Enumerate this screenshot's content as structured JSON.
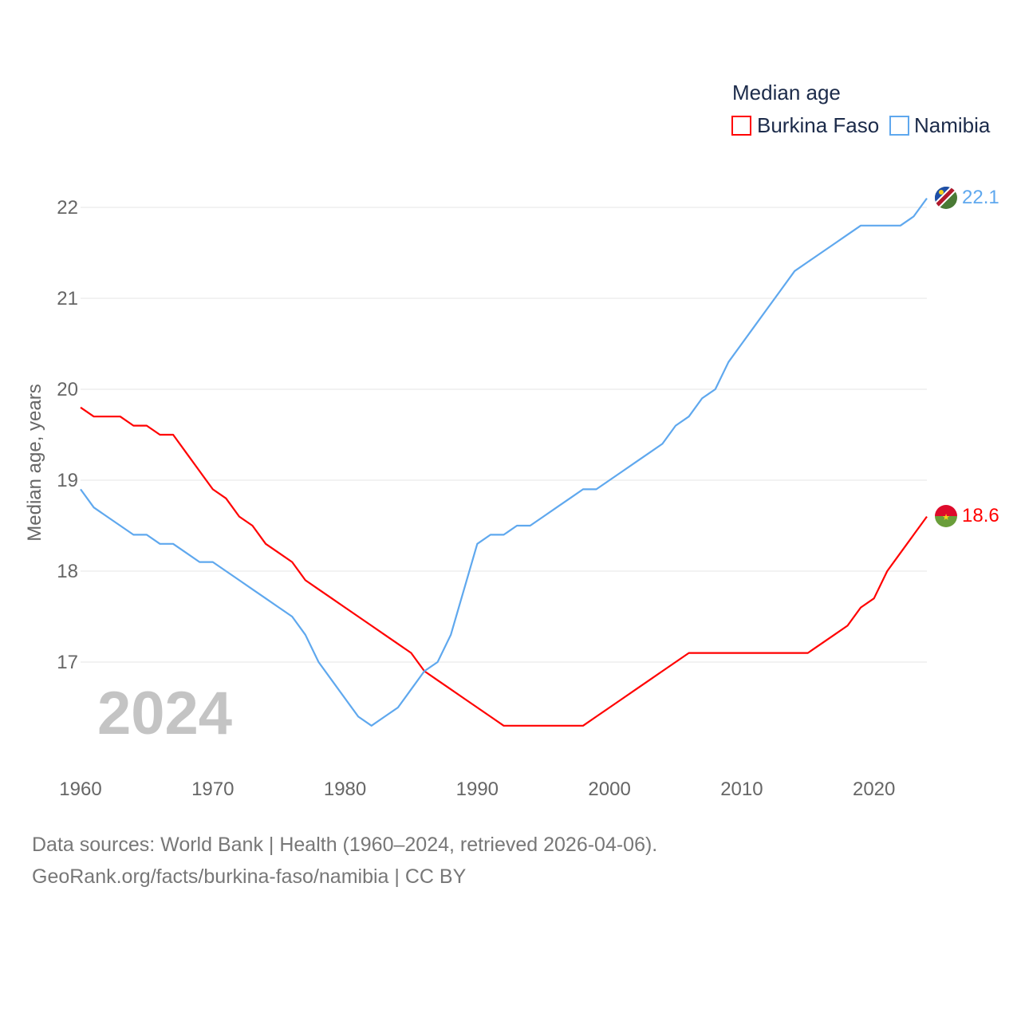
{
  "chart_data": {
    "type": "line",
    "title": "Median age",
    "ylabel": "Median age, years",
    "xlabel": "",
    "xlim": [
      1960,
      2024
    ],
    "ylim": [
      16.1,
      22.5
    ],
    "x_ticks": [
      "1960",
      "1970",
      "1980",
      "1990",
      "2000",
      "2010",
      "2020"
    ],
    "y_ticks": [
      "17",
      "18",
      "19",
      "20",
      "21",
      "22"
    ],
    "grid": true,
    "legend_position": "top-right",
    "year_watermark": "2024",
    "x": [
      1960,
      1961,
      1962,
      1963,
      1964,
      1965,
      1966,
      1967,
      1968,
      1969,
      1970,
      1971,
      1972,
      1973,
      1974,
      1975,
      1976,
      1977,
      1978,
      1979,
      1980,
      1981,
      1982,
      1983,
      1984,
      1985,
      1986,
      1987,
      1988,
      1989,
      1990,
      1991,
      1992,
      1993,
      1994,
      1995,
      1996,
      1997,
      1998,
      1999,
      2000,
      2001,
      2002,
      2003,
      2004,
      2005,
      2006,
      2007,
      2008,
      2009,
      2010,
      2011,
      2012,
      2013,
      2014,
      2015,
      2016,
      2017,
      2018,
      2019,
      2020,
      2021,
      2022,
      2023,
      2024
    ],
    "series": [
      {
        "name": "Burkina Faso",
        "color": "#ff0000",
        "end_label": "18.6",
        "values": [
          19.8,
          19.7,
          19.7,
          19.7,
          19.6,
          19.6,
          19.5,
          19.5,
          19.3,
          19.1,
          18.9,
          18.8,
          18.6,
          18.5,
          18.3,
          18.2,
          18.1,
          17.9,
          17.8,
          17.7,
          17.6,
          17.5,
          17.4,
          17.3,
          17.2,
          17.1,
          16.9,
          16.8,
          16.7,
          16.6,
          16.5,
          16.4,
          16.3,
          16.3,
          16.3,
          16.3,
          16.3,
          16.3,
          16.3,
          16.4,
          16.5,
          16.6,
          16.7,
          16.8,
          16.9,
          17.0,
          17.1,
          17.1,
          17.1,
          17.1,
          17.1,
          17.1,
          17.1,
          17.1,
          17.1,
          17.1,
          17.2,
          17.3,
          17.4,
          17.6,
          17.7,
          18.0,
          18.2,
          18.4,
          18.6
        ]
      },
      {
        "name": "Namibia",
        "color": "#5fa8ee",
        "end_label": "22.1",
        "values": [
          18.9,
          18.7,
          18.6,
          18.5,
          18.4,
          18.4,
          18.3,
          18.3,
          18.2,
          18.1,
          18.1,
          18.0,
          17.9,
          17.8,
          17.7,
          17.6,
          17.5,
          17.3,
          17.0,
          16.8,
          16.6,
          16.4,
          16.3,
          16.4,
          16.5,
          16.7,
          16.9,
          17.0,
          17.3,
          17.8,
          18.3,
          18.4,
          18.4,
          18.5,
          18.5,
          18.6,
          18.7,
          18.8,
          18.9,
          18.9,
          19.0,
          19.1,
          19.2,
          19.3,
          19.4,
          19.6,
          19.7,
          19.9,
          20.0,
          20.3,
          20.5,
          20.7,
          20.9,
          21.1,
          21.3,
          21.4,
          21.5,
          21.6,
          21.7,
          21.8,
          21.8,
          21.8,
          21.8,
          21.9,
          22.1
        ]
      }
    ]
  },
  "footer": {
    "line1": "Data sources: World Bank | Health (1960–2024, retrieved 2026-04-06).",
    "line2": "GeoRank.org/facts/burkina-faso/namibia | CC BY"
  }
}
